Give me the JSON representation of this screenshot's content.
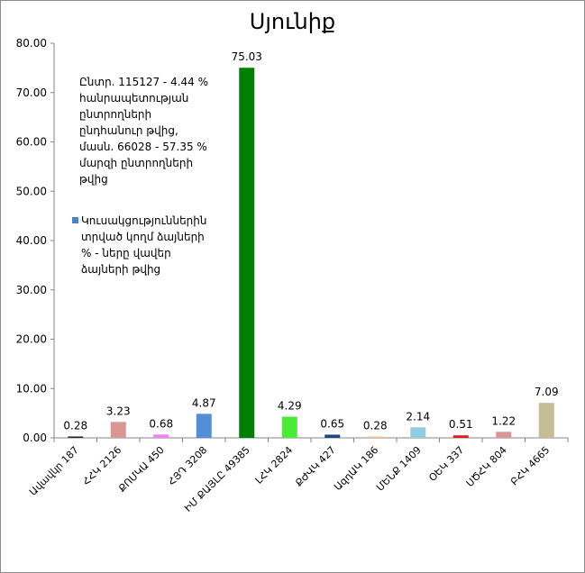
{
  "chart_data": {
    "type": "bar",
    "title": "Սյունիք",
    "categories": [
      "Ավավկր 187",
      "ՀՀԿ 2126",
      "ՔՈՄԿԱ 450",
      "ՀՅԴ 3208",
      "ԻՄ ՔԱՅԼԸ 49385",
      "ԼՀԿ 2824",
      "ՔԺՎԿ 427",
      "ԱզդԱԿ 186",
      "ՄԵՆՔ 1409",
      "ՕԵԿ 337",
      "ՍԾՀԿ 804",
      "ԲՀԿ 4665"
    ],
    "values": [
      0.28,
      3.23,
      0.68,
      4.87,
      75.03,
      4.29,
      0.65,
      0.28,
      2.14,
      0.51,
      1.22,
      7.09
    ],
    "value_labels": [
      "0.28",
      "3.23",
      "0.68",
      "4.87",
      "75.03",
      "4.29",
      "0.65",
      "0.28",
      "2.14",
      "0.51",
      "1.22",
      "7.09"
    ],
    "colors": [
      "#262626",
      "#d99694",
      "#ee82ee",
      "#558ed5",
      "#008000",
      "#4bea37",
      "#1f497d",
      "#fac090",
      "#93cddd",
      "#e31a1c",
      "#d99694",
      "#c4bd97"
    ],
    "ylim": [
      0,
      80
    ],
    "yticks": [
      "0.00",
      "10.00",
      "20.00",
      "30.00",
      "40.00",
      "50.00",
      "60.00",
      "70.00",
      "80.00"
    ],
    "grid": false,
    "annotation": [
      "Ընտր. 115127 - 4.44 %",
      "հանրապետության",
      "ընտրողների",
      "ընդհանուր թվից,",
      "մասն. 66028 - 57.35 %",
      "մարզի ընտրողների",
      "թվից"
    ],
    "legend": {
      "label": [
        "Կուսակցություններին",
        "տրված կողմ ձայների",
        "% - ները վավեր",
        "ձայների թվից"
      ],
      "color": "#4f81bd"
    }
  }
}
